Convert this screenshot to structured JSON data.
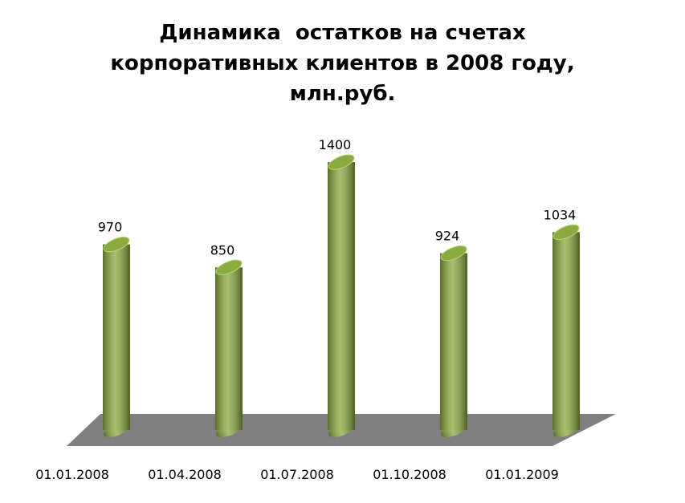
{
  "chart_data": {
    "type": "bar",
    "title": "Динамика  остатков на счетах корпоративных клиентов в 2008 году, млн.руб.",
    "categories": [
      "01.01.2008",
      "01.04.2008",
      "01.07.2008",
      "01.10.2008",
      "01.01.2009"
    ],
    "values": [
      970,
      850,
      1400,
      924,
      1034
    ],
    "color": "#8aab3e"
  }
}
